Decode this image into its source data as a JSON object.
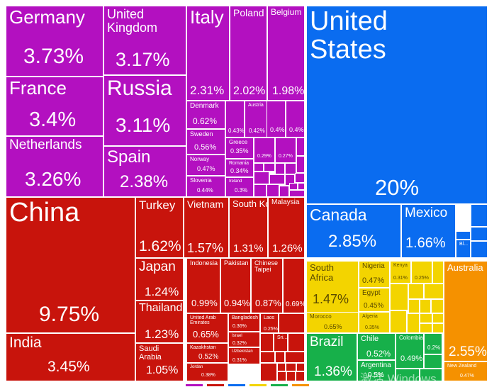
{
  "colors": {
    "europe": "#b310c0",
    "asia": "#c8140c",
    "north_america": "#0a6cf0",
    "africa": "#f3d400",
    "south_america": "#17b04a",
    "oceania": "#f59100"
  },
  "watermark": "激活 Windows",
  "legend_swatches": [
    "#b310c0",
    "#c8140c",
    "#0a6cf0",
    "#f3d400",
    "#17b04a",
    "#f59100"
  ],
  "chart_data": {
    "type": "treemap",
    "unit": "%",
    "groups": [
      {
        "color_key": "north_america",
        "items": [
          {
            "name": "United States",
            "value": 20
          },
          {
            "name": "Canada",
            "value": 2.85
          },
          {
            "name": "Mexico",
            "value": 1.66
          },
          {
            "name": "Bl...",
            "value": null
          }
        ]
      },
      {
        "color_key": "europe",
        "items": [
          {
            "name": "Germany",
            "value": 3.73
          },
          {
            "name": "France",
            "value": 3.4
          },
          {
            "name": "Netherlands",
            "value": 3.26
          },
          {
            "name": "United Kingdom",
            "value": 3.17
          },
          {
            "name": "Russia",
            "value": 3.11
          },
          {
            "name": "Spain",
            "value": 2.38
          },
          {
            "name": "Italy",
            "value": 2.31
          },
          {
            "name": "Poland",
            "value": 2.02
          },
          {
            "name": "Belgium",
            "value": 1.98
          },
          {
            "name": "Denmark",
            "value": 0.62
          },
          {
            "name": "Sweden",
            "value": 0.56
          },
          {
            "name": "Norway",
            "value": 0.47
          },
          {
            "name": "Slovenia",
            "value": 0.44
          },
          {
            "name": "Austria",
            "value": 0.42
          },
          {
            "name": "",
            "value": 0.43
          },
          {
            "name": "",
            "value": 0.4
          },
          {
            "name": "",
            "value": 0.4
          },
          {
            "name": "Greece",
            "value": 0.35
          },
          {
            "name": "Romania",
            "value": 0.34
          },
          {
            "name": "Ireland",
            "value": 0.3
          },
          {
            "name": "",
            "value": 0.29
          },
          {
            "name": "",
            "value": 0.27
          }
        ]
      },
      {
        "color_key": "asia",
        "items": [
          {
            "name": "China",
            "value": 9.75
          },
          {
            "name": "India",
            "value": 3.45
          },
          {
            "name": "Turkey",
            "value": 1.62
          },
          {
            "name": "Vietnam",
            "value": 1.57
          },
          {
            "name": "South Korea",
            "value": 1.31
          },
          {
            "name": "Malaysia",
            "value": 1.26
          },
          {
            "name": "Japan",
            "value": 1.24
          },
          {
            "name": "Thailand",
            "value": 1.23
          },
          {
            "name": "Saudi Arabia",
            "value": 1.05
          },
          {
            "name": "Indonesia",
            "value": 0.99
          },
          {
            "name": "Pakistan",
            "value": 0.94
          },
          {
            "name": "Chinese Taipei",
            "value": 0.87
          },
          {
            "name": "",
            "value": 0.69
          },
          {
            "name": "United Arab Emirates",
            "value": 0.65
          },
          {
            "name": "Kazakhstan",
            "value": 0.52
          },
          {
            "name": "Jordan",
            "value": 0.38
          },
          {
            "name": "Bangladesh",
            "value": 0.36
          },
          {
            "name": "Israel",
            "value": 0.32
          },
          {
            "name": "Uzbekistan",
            "value": 0.31
          },
          {
            "name": "Laos",
            "value": 0.25
          },
          {
            "name": "Sri...",
            "value": null
          }
        ]
      },
      {
        "color_key": "africa",
        "items": [
          {
            "name": "South Africa",
            "value": 1.47
          },
          {
            "name": "Nigeria",
            "value": 0.47
          },
          {
            "name": "Egypt",
            "value": 0.45
          },
          {
            "name": "Morocco",
            "value": 0.65
          },
          {
            "name": "Algeria",
            "value": 0.35
          },
          {
            "name": "Kenya",
            "value": 0.31
          },
          {
            "name": "",
            "value": 0.25
          }
        ]
      },
      {
        "color_key": "south_america",
        "items": [
          {
            "name": "Brazil",
            "value": 1.36
          },
          {
            "name": "Chile",
            "value": 0.52
          },
          {
            "name": "Colombia",
            "value": 0.49
          },
          {
            "name": "",
            "value": 0.2
          },
          {
            "name": "Argentina",
            "value": 0.5
          }
        ]
      },
      {
        "color_key": "oceania",
        "items": [
          {
            "name": "Australia",
            "value": 2.55
          },
          {
            "name": "New Zealand",
            "value": 0.47
          }
        ]
      }
    ]
  }
}
